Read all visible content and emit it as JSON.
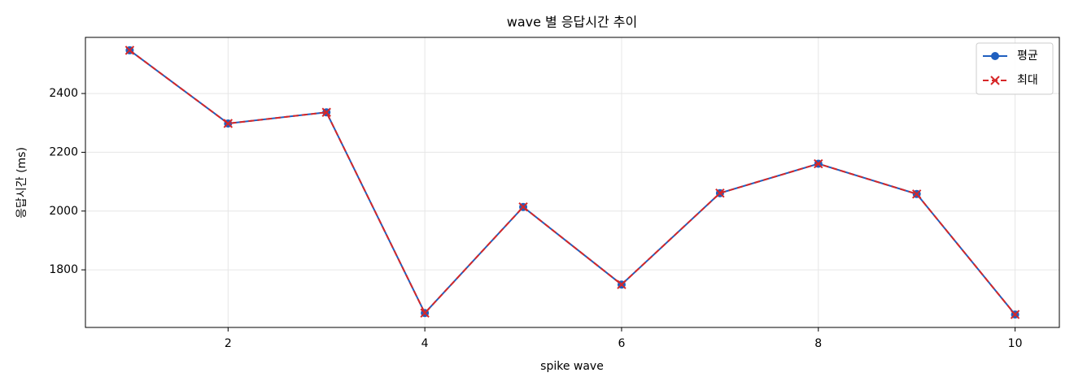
{
  "chart_data": {
    "type": "line",
    "title": "wave 별 응답시간 추이",
    "x_label": "spike wave",
    "y_label": "응답시간 (ms)",
    "x": [
      1,
      2,
      3,
      4,
      5,
      6,
      7,
      8,
      9,
      10
    ],
    "series": [
      {
        "name": "평균",
        "color": "#1f5fbf",
        "marker": "o",
        "linestyle": "solid",
        "values": [
          2547,
          2298,
          2336,
          1653,
          2014,
          1750,
          2061,
          2161,
          2058,
          1648
        ]
      },
      {
        "name": "최대",
        "color": "#d62728",
        "marker": "x",
        "linestyle": "dashed",
        "values": [
          2547,
          2298,
          2336,
          1653,
          2014,
          1750,
          2061,
          2161,
          2058,
          1648
        ]
      }
    ],
    "xlim": [
      0.55,
      10.45
    ],
    "xticks": [
      2,
      4,
      6,
      8,
      10
    ],
    "ylim": [
      1604,
      2591
    ],
    "yticks": [
      1800,
      2000,
      2200,
      2400
    ],
    "grid": true,
    "legend": "upper right"
  }
}
